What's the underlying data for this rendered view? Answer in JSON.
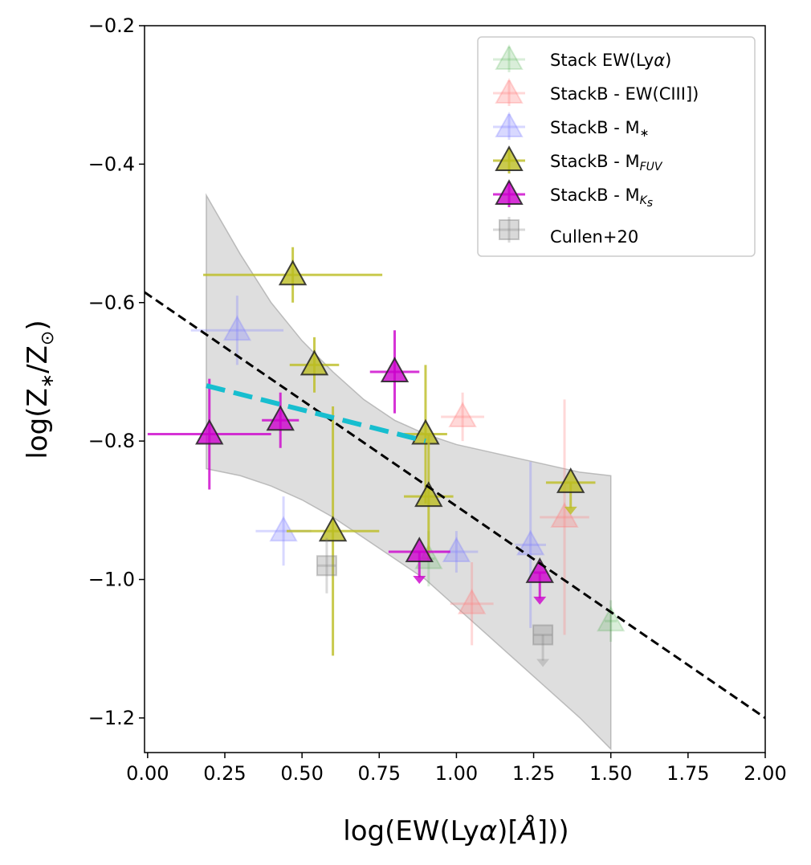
{
  "chart_data": {
    "type": "scatter",
    "xlabel_prefix": "log(EW(Ly",
    "xlabel_alpha": "α",
    "xlabel_unit": "Å",
    "xlabel_suffix": "]))",
    "ylabel_prefix": "log(Z",
    "ylabel_star": "∗",
    "ylabel_mid": "/Z",
    "ylabel_sun": "⊙",
    "ylabel_suffix": ")",
    "xlim": [
      -0.01,
      2.0
    ],
    "ylim": [
      -1.25,
      -0.2
    ],
    "xticks": [
      0.0,
      0.25,
      0.5,
      0.75,
      1.0,
      1.25,
      1.5,
      1.75,
      2.0
    ],
    "xtick_labels": [
      "0.00",
      "0.25",
      "0.50",
      "0.75",
      "1.00",
      "1.25",
      "1.50",
      "1.75",
      "2.00"
    ],
    "yticks": [
      -0.2,
      -0.4,
      -0.6,
      -0.8,
      -1.0,
      -1.2
    ],
    "ytick_labels": [
      "−0.2",
      "−0.4",
      "−0.6",
      "−0.8",
      "−1.0",
      "−1.2"
    ],
    "legend_position": "upper right",
    "legend_labels": {
      "stack_lya": [
        "Stack EW(Ly",
        "α",
        ")"
      ],
      "stackb_ciii": [
        "StackB - EW(CIII])"
      ],
      "stackb_mstar": [
        "StackB - M",
        "∗"
      ],
      "stackb_mfuv": [
        "StackB - M",
        "FUV"
      ],
      "stackb_mks": [
        "StackB - M",
        "K",
        "s"
      ],
      "cullen": [
        "Cullen+20"
      ]
    },
    "band": {
      "x": [
        0.19,
        0.3,
        0.4,
        0.5,
        0.6,
        0.7,
        0.8,
        0.9,
        1.0,
        1.1,
        1.2,
        1.3,
        1.4,
        1.5
      ],
      "upper": [
        -0.445,
        -0.53,
        -0.6,
        -0.655,
        -0.7,
        -0.74,
        -0.77,
        -0.79,
        -0.805,
        -0.815,
        -0.825,
        -0.835,
        -0.845,
        -0.85
      ],
      "lower": [
        -0.84,
        -0.85,
        -0.865,
        -0.885,
        -0.91,
        -0.94,
        -0.97,
        -1.0,
        -1.04,
        -1.08,
        -1.12,
        -1.16,
        -1.2,
        -1.245
      ]
    },
    "fit_line": {
      "x": [
        -0.01,
        2.0
      ],
      "y": [
        -0.585,
        -1.2
      ]
    },
    "cyan_line": {
      "x": [
        0.19,
        0.9
      ],
      "y": [
        -0.72,
        -0.8
      ]
    },
    "series": [
      {
        "name": "Stack EW(Lyα)",
        "key": "stack_lya",
        "marker": "triangle",
        "color": "#2ca02c",
        "alpha": 0.18,
        "points": [
          {
            "x": 0.91,
            "y": -0.97,
            "xerr": 0.02,
            "yerr": 0.04,
            "upper": false
          },
          {
            "x": 1.5,
            "y": -1.06,
            "xerr": 0.02,
            "yerr": 0.03,
            "upper": false
          }
        ]
      },
      {
        "name": "StackB - EW(CIII])",
        "key": "stackb_ciii",
        "marker": "triangle",
        "color": "#ff7f7f",
        "alpha": 0.3,
        "points": [
          {
            "x": 1.02,
            "y": -0.765,
            "xerr": 0.07,
            "yerr": 0.035,
            "upper": false
          },
          {
            "x": 1.05,
            "y": -1.035,
            "xerr": 0.07,
            "yerr": 0.06,
            "upper": false
          },
          {
            "x": 1.35,
            "y": -0.91,
            "xerr": 0.08,
            "yerr": 0.17,
            "upper": false
          }
        ]
      },
      {
        "name": "StackB - M∗",
        "key": "stackb_mstar",
        "marker": "triangle",
        "color": "#7f7fff",
        "alpha": 0.3,
        "points": [
          {
            "x": 0.29,
            "y": -0.64,
            "xerr": 0.15,
            "yerr": 0.05,
            "upper": false
          },
          {
            "x": 0.44,
            "y": -0.93,
            "xerr": 0.09,
            "yerr": 0.05,
            "upper": false
          },
          {
            "x": 1.0,
            "y": -0.96,
            "xerr": 0.07,
            "yerr": 0.03,
            "upper": false
          },
          {
            "x": 1.24,
            "y": -0.95,
            "xerr": 0.05,
            "yerr": 0.12,
            "upper": false
          }
        ]
      },
      {
        "name": "StackB - M_FUV",
        "key": "stackb_mfuv",
        "marker": "triangle",
        "color": "#bcbd22",
        "alpha": 0.8,
        "points": [
          {
            "x": 0.47,
            "y": -0.56,
            "xerr": 0.29,
            "yerr": 0.04,
            "upper": false
          },
          {
            "x": 0.54,
            "y": -0.69,
            "xerr": 0.08,
            "yerr": 0.04,
            "upper": false
          },
          {
            "x": 0.6,
            "y": -0.93,
            "xerr": 0.15,
            "yerr": 0.18,
            "upper": false
          },
          {
            "x": 0.9,
            "y": -0.79,
            "xerr": 0.07,
            "yerr": 0.1,
            "upper": false
          },
          {
            "x": 0.91,
            "y": -0.88,
            "xerr": 0.08,
            "yerr": 0.09,
            "upper": false
          },
          {
            "x": 1.37,
            "y": -0.86,
            "xerr": 0.08,
            "yerr": 0,
            "upper": true
          }
        ]
      },
      {
        "name": "StackB - M_Ks",
        "key": "stackb_mks",
        "marker": "triangle",
        "color": "#cc00cc",
        "alpha": 0.8,
        "points": [
          {
            "x": 0.2,
            "y": -0.79,
            "xerr": 0.2,
            "yerr": 0.08,
            "upper": false
          },
          {
            "x": 0.43,
            "y": -0.77,
            "xerr": 0.06,
            "yerr": 0.04,
            "upper": false
          },
          {
            "x": 0.8,
            "y": -0.7,
            "xerr": 0.08,
            "yerr": 0.06,
            "upper": false
          },
          {
            "x": 0.88,
            "y": -0.96,
            "xerr": 0.1,
            "yerr": 0,
            "upper": true
          },
          {
            "x": 1.27,
            "y": -0.99,
            "xerr": 0.02,
            "yerr": 0,
            "upper": true
          }
        ]
      },
      {
        "name": "Cullen+20",
        "key": "cullen",
        "marker": "square",
        "color": "#808080",
        "alpha": 0.3,
        "points": [
          {
            "x": 0.58,
            "y": -0.98,
            "xerr": 0.03,
            "yerr": 0.04,
            "upper": false
          },
          {
            "x": 1.28,
            "y": -1.08,
            "xerr": 0.03,
            "yerr": 0,
            "upper": true
          }
        ]
      }
    ]
  }
}
